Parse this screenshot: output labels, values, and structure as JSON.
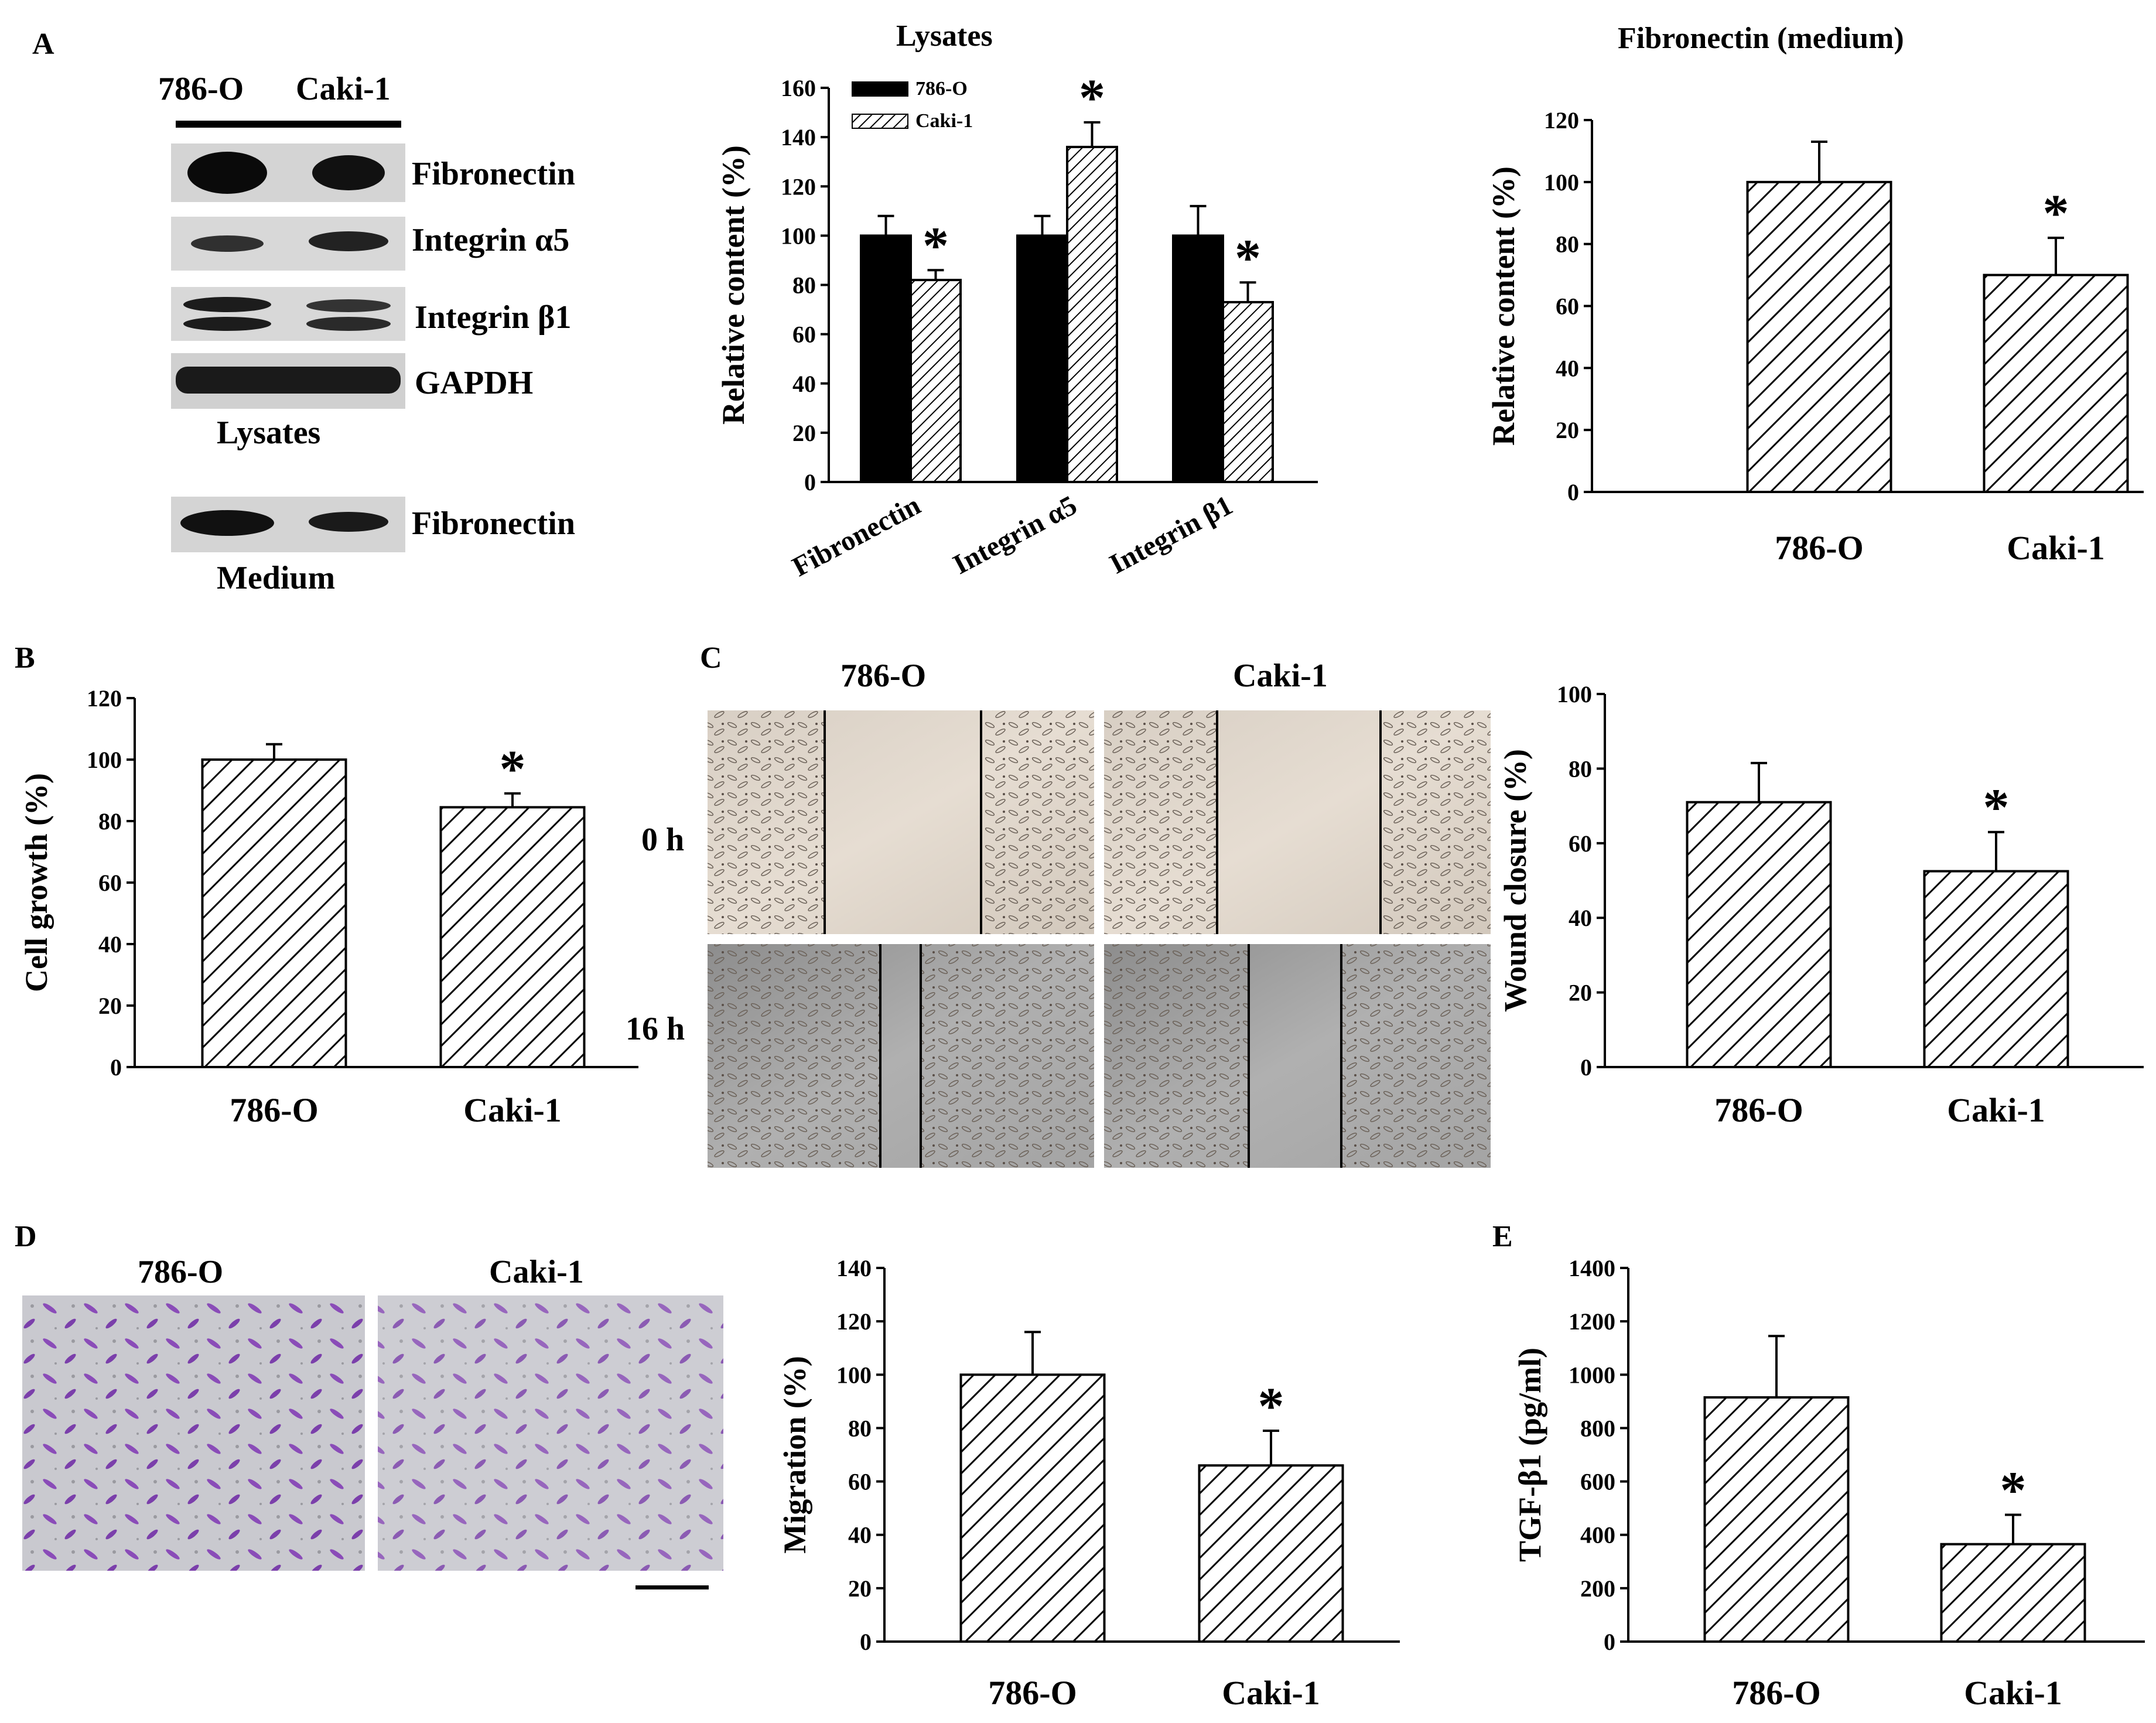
{
  "panel_labels": {
    "A": "A",
    "B": "B",
    "C": "C",
    "D": "D",
    "E": "E"
  },
  "western_blot": {
    "lane_labels": [
      "786-O",
      "Caki-1"
    ],
    "lysate_bands": [
      "Fibronectin",
      "Integrin α5",
      "Integrin β1",
      "GAPDH"
    ],
    "lysates_caption": "Lysates",
    "medium_band": "Fibronectin",
    "medium_caption": "Medium"
  },
  "wound_images": {
    "col_labels": [
      "786-O",
      "Caki-1"
    ],
    "row_labels": [
      "0 h",
      "16 h"
    ]
  },
  "migration_images": {
    "col_labels": [
      "786-O",
      "Caki-1"
    ]
  },
  "significance_marker": "*",
  "colors": {
    "bar_solid": "#000000",
    "hatch": "#000000",
    "background": "#ffffff",
    "stain": "#7a3ca8"
  },
  "chart_data": [
    {
      "id": "lysates",
      "type": "bar",
      "title": "Lysates",
      "xlabel": "",
      "ylabel": "Relative content (%)",
      "categories": [
        "Fibronectin",
        "Integrin α5",
        "Integrin β1"
      ],
      "series": [
        {
          "name": "786-O",
          "style": "solid",
          "values": [
            100,
            100,
            100
          ],
          "errors": [
            8,
            8,
            12
          ]
        },
        {
          "name": "Caki-1",
          "style": "hatch",
          "values": [
            82,
            136,
            73
          ],
          "errors": [
            4,
            10,
            8
          ]
        }
      ],
      "significant": [
        [
          false,
          true
        ],
        [
          false,
          true
        ],
        [
          false,
          true
        ]
      ],
      "ylim": [
        0,
        160
      ],
      "yticks": [
        0,
        20,
        40,
        60,
        80,
        100,
        120,
        140,
        160
      ],
      "legend": "top-left",
      "grid": false
    },
    {
      "id": "fibronectin_medium",
      "type": "bar",
      "title": "Fibronectin (medium)",
      "xlabel": "",
      "ylabel": "Relative content  (%)",
      "categories": [
        "786-O",
        "Caki-1"
      ],
      "values": [
        100,
        70
      ],
      "errors": [
        13,
        12
      ],
      "significant": [
        false,
        true
      ],
      "ylim": [
        0,
        120
      ],
      "yticks": [
        0,
        20,
        40,
        60,
        80,
        100,
        120
      ],
      "grid": false
    },
    {
      "id": "cell_growth",
      "type": "bar",
      "title": "",
      "xlabel": "",
      "ylabel": "Cell growth (%)",
      "categories": [
        "786-O",
        "Caki-1"
      ],
      "values": [
        100,
        84.5
      ],
      "errors": [
        5,
        4.5
      ],
      "significant": [
        false,
        true
      ],
      "ylim": [
        0,
        120
      ],
      "yticks": [
        0,
        20,
        40,
        60,
        80,
        100,
        120
      ],
      "grid": false
    },
    {
      "id": "wound_closure",
      "type": "bar",
      "title": "",
      "xlabel": "",
      "ylabel": "Wound closure (%)",
      "categories": [
        "786-O",
        "Caki-1"
      ],
      "values": [
        71,
        52.5
      ],
      "errors": [
        10.5,
        10.5
      ],
      "significant": [
        false,
        true
      ],
      "ylim": [
        0,
        100
      ],
      "yticks": [
        0,
        20,
        40,
        60,
        80,
        100
      ],
      "grid": false
    },
    {
      "id": "migration",
      "type": "bar",
      "title": "",
      "xlabel": "",
      "ylabel": "Migration (%)",
      "categories": [
        "786-O",
        "Caki-1"
      ],
      "values": [
        100,
        66
      ],
      "errors": [
        16,
        13
      ],
      "significant": [
        false,
        true
      ],
      "ylim": [
        0,
        140
      ],
      "yticks": [
        0,
        20,
        40,
        60,
        80,
        100,
        120,
        140
      ],
      "grid": false
    },
    {
      "id": "tgf_beta1",
      "type": "bar",
      "title": "",
      "xlabel": "",
      "ylabel": "TGF-β1 (pg/ml)",
      "categories": [
        "786-O",
        "Caki-1"
      ],
      "values": [
        915,
        365
      ],
      "errors": [
        230,
        110
      ],
      "significant": [
        false,
        true
      ],
      "ylim": [
        0,
        1400
      ],
      "yticks": [
        0,
        200,
        400,
        600,
        800,
        1000,
        1200,
        1400
      ],
      "grid": false
    }
  ]
}
